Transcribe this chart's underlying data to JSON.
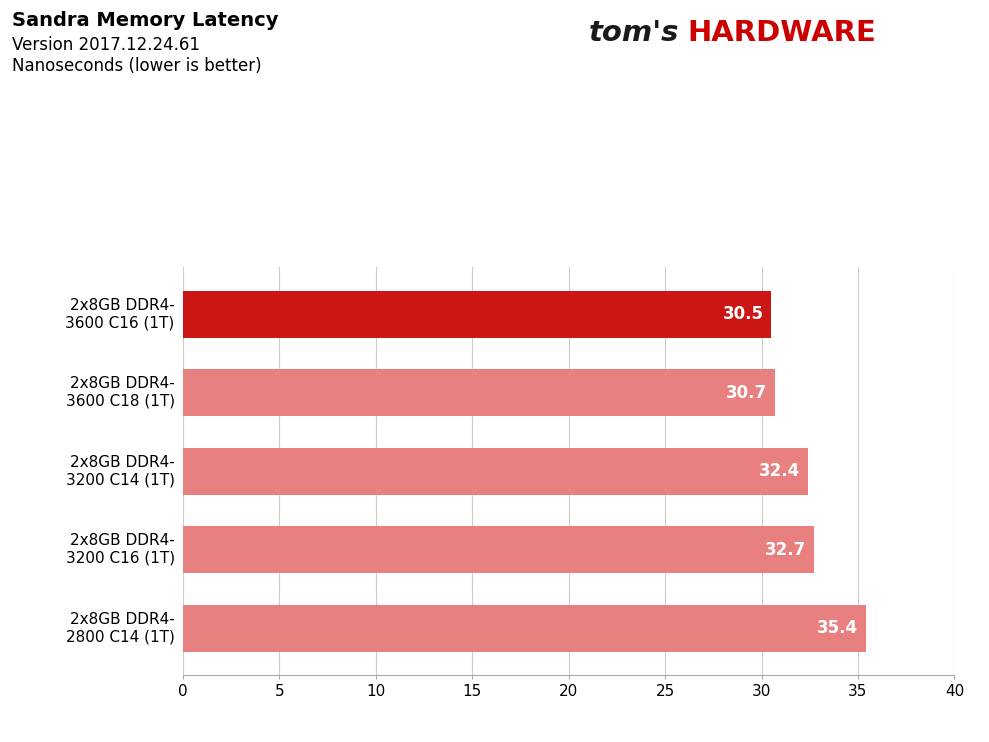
{
  "title_line1": "Sandra Memory Latency",
  "title_line2": "Version 2017.12.24.61",
  "title_line3": "Nanoseconds (lower is better)",
  "categories": [
    "2x8GB DDR4-\n3600 C16 (1T)",
    "2x8GB DDR4-\n3600 C18 (1T)",
    "2x8GB DDR4-\n3200 C14 (1T)",
    "2x8GB DDR4-\n3200 C16 (1T)",
    "2x8GB DDR4-\n2800 C14 (1T)"
  ],
  "values": [
    30.5,
    30.7,
    32.4,
    32.7,
    35.4
  ],
  "bar_colors": [
    "#cc1515",
    "#e88080",
    "#e88080",
    "#e88080",
    "#e88080"
  ],
  "value_labels": [
    "30.5",
    "30.7",
    "32.4",
    "32.7",
    "35.4"
  ],
  "xlim": [
    0,
    40
  ],
  "xticks": [
    0,
    5,
    10,
    15,
    20,
    25,
    30,
    35,
    40
  ],
  "bar_height": 0.6,
  "background_color": "#ffffff",
  "grid_color": "#cccccc",
  "toms_black": "#1a1a1a",
  "toms_red": "#cc0000",
  "label_fontsize": 11,
  "value_fontsize": 12,
  "title_fontsize1": 14,
  "title_fontsize2": 12
}
